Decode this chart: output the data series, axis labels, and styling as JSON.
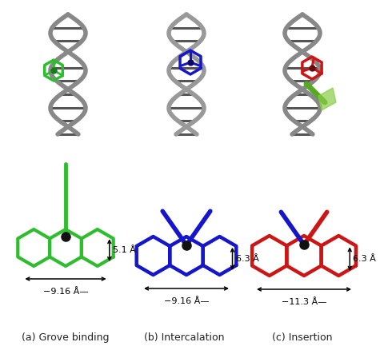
{
  "bg_color": "#ffffff",
  "labels_bottom": [
    "(a) Grove binding",
    "(b) Intercalation",
    "(c) Insertion"
  ],
  "label_fontsize": 9,
  "annotation_fontsize": 8.5,
  "green": "#2ebd2e",
  "blue": "#1515cc",
  "red": "#cc1515",
  "dark_blue": "#1515aa",
  "measurements": [
    {
      "w_label": "−9.16 Å—",
      "h_label": "5.1 Å"
    },
    {
      "w_label": "−9.16 Å—",
      "h_label": "6.3 Å"
    },
    {
      "w_label": "−11.3 Å—",
      "h_label": "6.3 Å"
    }
  ]
}
